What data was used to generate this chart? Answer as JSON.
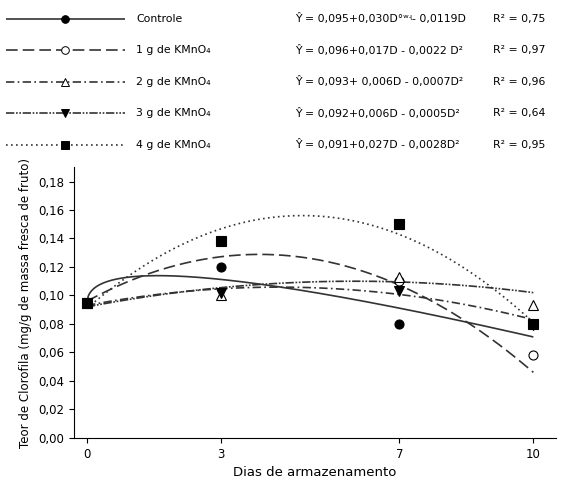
{
  "xlabel": "Dias de armazenamento",
  "ylabel": "Teor de Clorofila (mg/g de massa fresca de fruto)",
  "xlim": [
    -0.3,
    10.5
  ],
  "ylim": [
    0,
    0.19
  ],
  "yticks": [
    0.0,
    0.02,
    0.04,
    0.06,
    0.08,
    0.1,
    0.12,
    0.14,
    0.16,
    0.18
  ],
  "xticks": [
    0,
    3,
    7,
    10
  ],
  "series": [
    {
      "label": "Controle",
      "equation": "Ŷ = 0,095+0,030D°ʷʵ- 0,0119D",
      "r2": "R² = 0,75",
      "linestyle": "solid",
      "marker": "o",
      "marker_filled": true,
      "data_x": [
        0,
        3,
        7,
        10
      ],
      "data_y": [
        0.095,
        0.12,
        0.08,
        0.08
      ],
      "curve_params": {
        "a": 0.095,
        "b": 0.03,
        "c": -0.0119,
        "type": "sqrt_linear"
      }
    },
    {
      "label": "1 g de KMnO₄",
      "equation": "Ŷ = 0,096+0,017D - 0,0022 D²",
      "r2": "R² = 0,97",
      "linestyle": "dashed",
      "marker": "o",
      "marker_filled": false,
      "data_x": [
        0,
        3,
        7,
        10
      ],
      "data_y": [
        0.095,
        0.138,
        0.11,
        0.058
      ],
      "curve_params": {
        "a": 0.096,
        "b": 0.017,
        "c": -0.0022,
        "type": "quadratic"
      }
    },
    {
      "label": "2 g de KMnO₄",
      "equation": "Ŷ = 0,093+ 0,006D - 0,0007D²",
      "r2": "R² = 0,96",
      "linestyle": "dashdot",
      "marker": "^",
      "marker_filled": false,
      "data_x": [
        0,
        3,
        7,
        10
      ],
      "data_y": [
        0.095,
        0.1,
        0.113,
        0.093
      ],
      "curve_params": {
        "a": 0.093,
        "b": 0.006,
        "c": -0.0007,
        "type": "quadratic"
      }
    },
    {
      "label": "3 g de KMnO₄",
      "equation": "Ŷ = 0,092+0,006D - 0,0005D²",
      "r2": "R² = 0,64",
      "linestyle": "dashdotdot",
      "marker": "v",
      "marker_filled": true,
      "data_x": [
        0,
        3,
        7,
        10
      ],
      "data_y": [
        0.095,
        0.102,
        0.103,
        0.079
      ],
      "curve_params": {
        "a": 0.092,
        "b": 0.006,
        "c": -0.0005,
        "type": "quadratic"
      }
    },
    {
      "label": "4 g de KMnO₄",
      "equation": "Ŷ = 0,091+0,027D - 0,0028D²",
      "r2": "R² = 0,95",
      "linestyle": "dotted",
      "marker": "s",
      "marker_filled": true,
      "data_x": [
        0,
        3,
        7,
        10
      ],
      "data_y": [
        0.095,
        0.138,
        0.15,
        0.08
      ],
      "curve_params": {
        "a": 0.091,
        "b": 0.027,
        "c": -0.0028,
        "type": "quadratic"
      }
    }
  ]
}
